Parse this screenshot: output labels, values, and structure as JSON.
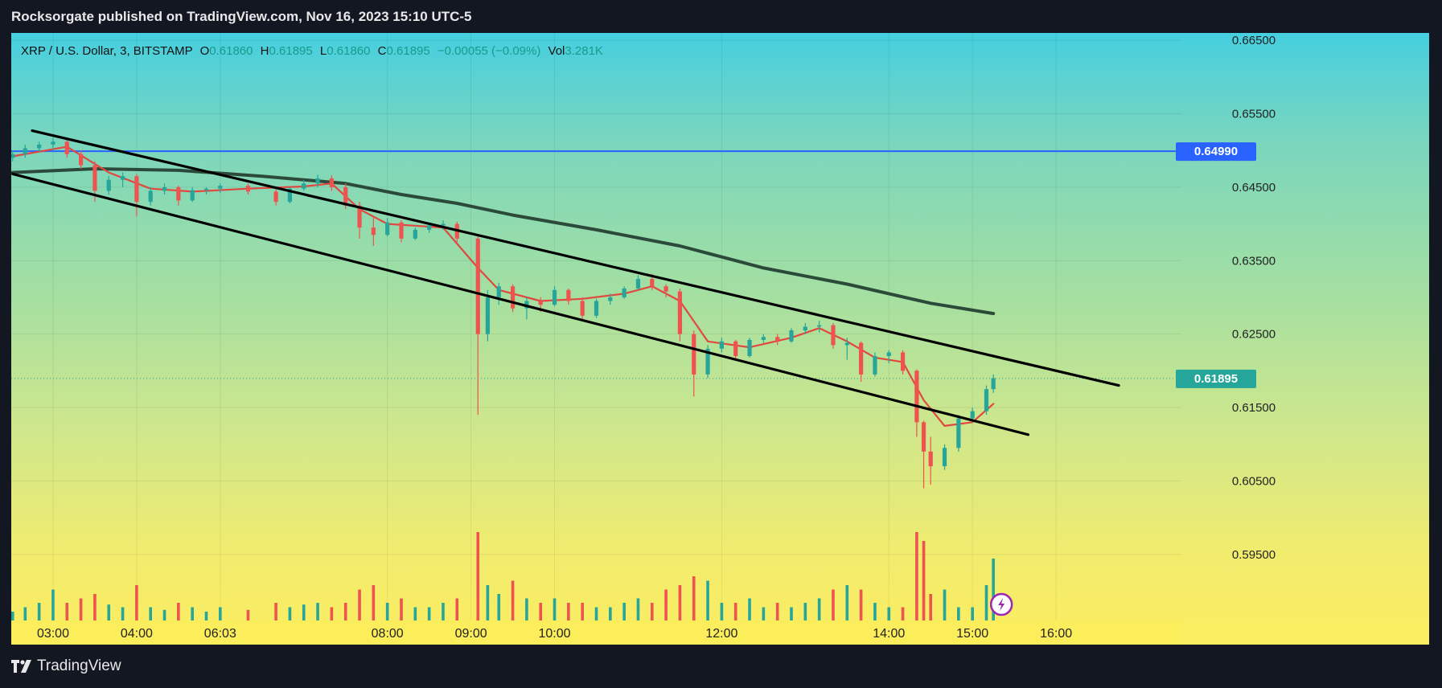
{
  "header": {
    "publish_line": "Rocksorgate published on TradingView.com, Nov 16, 2023 15:10 UTC-5"
  },
  "footer": {
    "brand": "TradingView"
  },
  "legend": {
    "symbol": "XRP / U.S. Dollar, 3, BITSTAMP",
    "o_label": "O",
    "o_value": "0.61860",
    "h_label": "H",
    "h_value": "0.61895",
    "l_label": "L",
    "l_value": "0.61860",
    "c_label": "C",
    "c_value": "0.61895",
    "change": "−0.00055 (−0.09%)",
    "vol_label": "Vol",
    "vol_value": "3.281K"
  },
  "colors": {
    "up": "#26a69a",
    "down": "#ef5350",
    "hline": "#2962ff",
    "last_price": "#26a69a",
    "ema_fast": "#e04840",
    "ema_mid": "#f0a030",
    "ma_slow": "#2c4a3a",
    "trendline": "#000000"
  },
  "chart_data": {
    "type": "candlestick",
    "symbol": "XRP / U.S. Dollar",
    "interval": "3",
    "exchange": "BITSTAMP",
    "y_range": [
      0.586,
      0.666
    ],
    "y_ticks": [
      "0.66500",
      "0.65500",
      "0.64500",
      "0.63500",
      "0.62500",
      "0.61500",
      "0.60500",
      "0.59500"
    ],
    "x_range": [
      "02:30",
      "16:30"
    ],
    "x_ticks": [
      {
        "label": "03:00",
        "t": "03:00"
      },
      {
        "label": "04:00",
        "t": "04:00"
      },
      {
        "label": "06:03",
        "t": "05:00"
      },
      {
        "label": "08:00",
        "t": "07:00"
      },
      {
        "label": "09:00",
        "t": "08:00"
      },
      {
        "label": "10:00",
        "t": "09:00"
      },
      {
        "label": "12:00",
        "t": "11:00"
      },
      {
        "label": "14:00",
        "t": "13:00"
      },
      {
        "label": "15:00",
        "t": "14:00"
      },
      {
        "label": "16:00",
        "t": "15:00"
      }
    ],
    "horizontal_line": {
      "price": 0.6499,
      "label": "0.64990"
    },
    "last_price": {
      "price": 0.61895,
      "label": "0.61895"
    },
    "candles": [
      {
        "t": "02:31",
        "o": 0.649,
        "h": 0.65,
        "l": 0.6485,
        "c": 0.6495,
        "v": 0.1
      },
      {
        "t": "02:40",
        "o": 0.6495,
        "h": 0.6508,
        "l": 0.649,
        "c": 0.6503,
        "v": 0.15
      },
      {
        "t": "02:50",
        "o": 0.6503,
        "h": 0.6512,
        "l": 0.6498,
        "c": 0.6508,
        "v": 0.2
      },
      {
        "t": "03:00",
        "o": 0.6508,
        "h": 0.6517,
        "l": 0.65,
        "c": 0.6512,
        "v": 0.35
      },
      {
        "t": "03:10",
        "o": 0.6512,
        "h": 0.6515,
        "l": 0.649,
        "c": 0.6495,
        "v": 0.2
      },
      {
        "t": "03:20",
        "o": 0.6495,
        "h": 0.65,
        "l": 0.6475,
        "c": 0.648,
        "v": 0.25
      },
      {
        "t": "03:30",
        "o": 0.648,
        "h": 0.6485,
        "l": 0.643,
        "c": 0.6445,
        "v": 0.3
      },
      {
        "t": "03:40",
        "o": 0.6445,
        "h": 0.6465,
        "l": 0.644,
        "c": 0.646,
        "v": 0.18
      },
      {
        "t": "03:50",
        "o": 0.646,
        "h": 0.647,
        "l": 0.645,
        "c": 0.6465,
        "v": 0.15
      },
      {
        "t": "04:00",
        "o": 0.6465,
        "h": 0.6468,
        "l": 0.641,
        "c": 0.643,
        "v": 0.4
      },
      {
        "t": "04:10",
        "o": 0.643,
        "h": 0.645,
        "l": 0.6425,
        "c": 0.6445,
        "v": 0.15
      },
      {
        "t": "04:20",
        "o": 0.6445,
        "h": 0.6455,
        "l": 0.644,
        "c": 0.645,
        "v": 0.12
      },
      {
        "t": "04:30",
        "o": 0.645,
        "h": 0.6452,
        "l": 0.6425,
        "c": 0.6432,
        "v": 0.2
      },
      {
        "t": "04:40",
        "o": 0.6432,
        "h": 0.645,
        "l": 0.643,
        "c": 0.6446,
        "v": 0.15
      },
      {
        "t": "04:50",
        "o": 0.6446,
        "h": 0.645,
        "l": 0.644,
        "c": 0.6448,
        "v": 0.1
      },
      {
        "t": "05:00",
        "o": 0.6448,
        "h": 0.6455,
        "l": 0.6442,
        "c": 0.6452,
        "v": 0.15
      },
      {
        "t": "05:20",
        "o": 0.6452,
        "h": 0.6455,
        "l": 0.644,
        "c": 0.6444,
        "v": 0.12
      },
      {
        "t": "05:40",
        "o": 0.6444,
        "h": 0.6448,
        "l": 0.6425,
        "c": 0.643,
        "v": 0.2
      },
      {
        "t": "05:50",
        "o": 0.643,
        "h": 0.645,
        "l": 0.6428,
        "c": 0.6448,
        "v": 0.15
      },
      {
        "t": "06:00",
        "o": 0.6448,
        "h": 0.646,
        "l": 0.6445,
        "c": 0.6455,
        "v": 0.18
      },
      {
        "t": "06:10",
        "o": 0.6455,
        "h": 0.6467,
        "l": 0.645,
        "c": 0.6462,
        "v": 0.2
      },
      {
        "t": "06:20",
        "o": 0.6462,
        "h": 0.6466,
        "l": 0.6445,
        "c": 0.645,
        "v": 0.15
      },
      {
        "t": "06:30",
        "o": 0.645,
        "h": 0.6455,
        "l": 0.642,
        "c": 0.6425,
        "v": 0.2
      },
      {
        "t": "06:40",
        "o": 0.6425,
        "h": 0.643,
        "l": 0.638,
        "c": 0.6395,
        "v": 0.35
      },
      {
        "t": "06:50",
        "o": 0.6395,
        "h": 0.641,
        "l": 0.637,
        "c": 0.6385,
        "v": 0.4
      },
      {
        "t": "07:00",
        "o": 0.6385,
        "h": 0.6408,
        "l": 0.6383,
        "c": 0.6402,
        "v": 0.2
      },
      {
        "t": "07:10",
        "o": 0.6402,
        "h": 0.6405,
        "l": 0.6375,
        "c": 0.638,
        "v": 0.25
      },
      {
        "t": "07:20",
        "o": 0.638,
        "h": 0.6395,
        "l": 0.6378,
        "c": 0.6392,
        "v": 0.15
      },
      {
        "t": "07:30",
        "o": 0.6392,
        "h": 0.6402,
        "l": 0.6388,
        "c": 0.6398,
        "v": 0.15
      },
      {
        "t": "07:40",
        "o": 0.6398,
        "h": 0.6405,
        "l": 0.6392,
        "c": 0.64,
        "v": 0.2
      },
      {
        "t": "07:50",
        "o": 0.64,
        "h": 0.6403,
        "l": 0.6375,
        "c": 0.638,
        "v": 0.25
      },
      {
        "t": "08:05",
        "o": 0.638,
        "h": 0.6385,
        "l": 0.614,
        "c": 0.625,
        "v": 1.0
      },
      {
        "t": "08:12",
        "o": 0.625,
        "h": 0.631,
        "l": 0.624,
        "c": 0.63,
        "v": 0.4
      },
      {
        "t": "08:20",
        "o": 0.63,
        "h": 0.632,
        "l": 0.629,
        "c": 0.6315,
        "v": 0.3
      },
      {
        "t": "08:30",
        "o": 0.6315,
        "h": 0.6318,
        "l": 0.628,
        "c": 0.6285,
        "v": 0.45
      },
      {
        "t": "08:40",
        "o": 0.6285,
        "h": 0.63,
        "l": 0.627,
        "c": 0.6295,
        "v": 0.25
      },
      {
        "t": "08:50",
        "o": 0.6295,
        "h": 0.63,
        "l": 0.628,
        "c": 0.629,
        "v": 0.2
      },
      {
        "t": "09:00",
        "o": 0.629,
        "h": 0.6315,
        "l": 0.6288,
        "c": 0.631,
        "v": 0.25
      },
      {
        "t": "09:10",
        "o": 0.631,
        "h": 0.6312,
        "l": 0.629,
        "c": 0.6295,
        "v": 0.2
      },
      {
        "t": "09:20",
        "o": 0.6295,
        "h": 0.63,
        "l": 0.627,
        "c": 0.6275,
        "v": 0.2
      },
      {
        "t": "09:30",
        "o": 0.6275,
        "h": 0.6298,
        "l": 0.6272,
        "c": 0.6295,
        "v": 0.15
      },
      {
        "t": "09:40",
        "o": 0.6295,
        "h": 0.6305,
        "l": 0.629,
        "c": 0.63,
        "v": 0.15
      },
      {
        "t": "09:50",
        "o": 0.63,
        "h": 0.6315,
        "l": 0.6298,
        "c": 0.6312,
        "v": 0.2
      },
      {
        "t": "10:00",
        "o": 0.6312,
        "h": 0.633,
        "l": 0.631,
        "c": 0.6325,
        "v": 0.25
      },
      {
        "t": "10:10",
        "o": 0.6325,
        "h": 0.6332,
        "l": 0.631,
        "c": 0.6315,
        "v": 0.2
      },
      {
        "t": "10:20",
        "o": 0.6315,
        "h": 0.6318,
        "l": 0.63,
        "c": 0.6308,
        "v": 0.35
      },
      {
        "t": "10:30",
        "o": 0.6308,
        "h": 0.6312,
        "l": 0.624,
        "c": 0.625,
        "v": 0.4
      },
      {
        "t": "10:40",
        "o": 0.625,
        "h": 0.6255,
        "l": 0.6165,
        "c": 0.6195,
        "v": 0.5
      },
      {
        "t": "10:50",
        "o": 0.6195,
        "h": 0.6235,
        "l": 0.619,
        "c": 0.623,
        "v": 0.45
      },
      {
        "t": "11:00",
        "o": 0.623,
        "h": 0.6245,
        "l": 0.6225,
        "c": 0.624,
        "v": 0.2
      },
      {
        "t": "11:10",
        "o": 0.624,
        "h": 0.6242,
        "l": 0.6215,
        "c": 0.622,
        "v": 0.2
      },
      {
        "t": "11:20",
        "o": 0.622,
        "h": 0.6245,
        "l": 0.6218,
        "c": 0.6242,
        "v": 0.25
      },
      {
        "t": "11:30",
        "o": 0.6242,
        "h": 0.625,
        "l": 0.6238,
        "c": 0.6246,
        "v": 0.15
      },
      {
        "t": "11:40",
        "o": 0.6246,
        "h": 0.625,
        "l": 0.6235,
        "c": 0.624,
        "v": 0.2
      },
      {
        "t": "11:50",
        "o": 0.624,
        "h": 0.6258,
        "l": 0.6238,
        "c": 0.6255,
        "v": 0.15
      },
      {
        "t": "12:00",
        "o": 0.6255,
        "h": 0.6265,
        "l": 0.625,
        "c": 0.626,
        "v": 0.2
      },
      {
        "t": "12:10",
        "o": 0.626,
        "h": 0.6268,
        "l": 0.6252,
        "c": 0.6262,
        "v": 0.25
      },
      {
        "t": "12:20",
        "o": 0.6262,
        "h": 0.6265,
        "l": 0.623,
        "c": 0.6235,
        "v": 0.35
      },
      {
        "t": "12:30",
        "o": 0.6235,
        "h": 0.6245,
        "l": 0.6215,
        "c": 0.6238,
        "v": 0.4
      },
      {
        "t": "12:40",
        "o": 0.6238,
        "h": 0.624,
        "l": 0.6185,
        "c": 0.6195,
        "v": 0.35
      },
      {
        "t": "12:50",
        "o": 0.6195,
        "h": 0.6225,
        "l": 0.6192,
        "c": 0.622,
        "v": 0.2
      },
      {
        "t": "13:00",
        "o": 0.622,
        "h": 0.6228,
        "l": 0.621,
        "c": 0.6225,
        "v": 0.15
      },
      {
        "t": "13:10",
        "o": 0.6225,
        "h": 0.6228,
        "l": 0.6195,
        "c": 0.62,
        "v": 0.15
      },
      {
        "t": "13:20",
        "o": 0.62,
        "h": 0.6202,
        "l": 0.611,
        "c": 0.613,
        "v": 1.0
      },
      {
        "t": "13:25",
        "o": 0.613,
        "h": 0.6132,
        "l": 0.604,
        "c": 0.609,
        "v": 0.9
      },
      {
        "t": "13:30",
        "o": 0.609,
        "h": 0.611,
        "l": 0.6045,
        "c": 0.607,
        "v": 0.3
      },
      {
        "t": "13:40",
        "o": 0.607,
        "h": 0.61,
        "l": 0.6065,
        "c": 0.6095,
        "v": 0.35
      },
      {
        "t": "13:50",
        "o": 0.6095,
        "h": 0.614,
        "l": 0.609,
        "c": 0.6135,
        "v": 0.15
      },
      {
        "t": "14:00",
        "o": 0.6135,
        "h": 0.615,
        "l": 0.613,
        "c": 0.6145,
        "v": 0.15
      },
      {
        "t": "14:10",
        "o": 0.6145,
        "h": 0.618,
        "l": 0.614,
        "c": 0.6175,
        "v": 0.4
      },
      {
        "t": "14:15",
        "o": 0.6175,
        "h": 0.6195,
        "l": 0.617,
        "c": 0.619,
        "v": 0.7
      }
    ],
    "ma_fast": [
      {
        "t": "02:31",
        "p": 0.6492
      },
      {
        "t": "03:10",
        "p": 0.6505
      },
      {
        "t": "03:40",
        "p": 0.647
      },
      {
        "t": "04:10",
        "p": 0.6448
      },
      {
        "t": "04:40",
        "p": 0.6444
      },
      {
        "t": "05:20",
        "p": 0.6448
      },
      {
        "t": "06:00",
        "p": 0.6451
      },
      {
        "t": "06:20",
        "p": 0.6455
      },
      {
        "t": "06:40",
        "p": 0.642
      },
      {
        "t": "07:00",
        "p": 0.64
      },
      {
        "t": "07:40",
        "p": 0.6395
      },
      {
        "t": "08:05",
        "p": 0.634
      },
      {
        "t": "08:20",
        "p": 0.631
      },
      {
        "t": "08:50",
        "p": 0.6295
      },
      {
        "t": "09:20",
        "p": 0.6298
      },
      {
        "t": "09:50",
        "p": 0.6305
      },
      {
        "t": "10:10",
        "p": 0.6315
      },
      {
        "t": "10:30",
        "p": 0.6295
      },
      {
        "t": "10:50",
        "p": 0.624
      },
      {
        "t": "11:20",
        "p": 0.6232
      },
      {
        "t": "11:50",
        "p": 0.6245
      },
      {
        "t": "12:10",
        "p": 0.6258
      },
      {
        "t": "12:30",
        "p": 0.624
      },
      {
        "t": "12:50",
        "p": 0.6218
      },
      {
        "t": "13:10",
        "p": 0.6212
      },
      {
        "t": "13:25",
        "p": 0.616
      },
      {
        "t": "13:40",
        "p": 0.6125
      },
      {
        "t": "14:00",
        "p": 0.613
      },
      {
        "t": "14:15",
        "p": 0.6155
      }
    ],
    "ma_mid": [
      {
        "t": "02:31",
        "p": 0.6495
      },
      {
        "t": "03:10",
        "p": 0.6495
      },
      {
        "t": "03:40",
        "p": 0.648
      },
      {
        "t": "04:10",
        "p": 0.6465
      },
      {
        "t": "05:00",
        "p": 0.6452
      },
      {
        "t": "06:00",
        "p": 0.6455
      },
      {
        "t": "06:30",
        "p": 0.644
      },
      {
        "t": "07:00",
        "p": 0.642
      },
      {
        "t": "07:40",
        "p": 0.641
      },
      {
        "t": "08:10",
        "p": 0.6375
      },
      {
        "t": "08:40",
        "p": 0.6335
      },
      {
        "t": "09:20",
        "p": 0.6318
      },
      {
        "t": "10:00",
        "p": 0.6318
      },
      {
        "t": "10:30",
        "p": 0.6302
      },
      {
        "t": "11:00",
        "p": 0.6268
      },
      {
        "t": "11:40",
        "p": 0.6252
      },
      {
        "t": "12:20",
        "p": 0.6252
      },
      {
        "t": "12:50",
        "p": 0.6235
      },
      {
        "t": "13:20",
        "p": 0.6215
      },
      {
        "t": "13:40",
        "p": 0.619
      },
      {
        "t": "14:00",
        "p": 0.6182
      },
      {
        "t": "14:15",
        "p": 0.6182
      }
    ],
    "ma_slow": [
      {
        "t": "02:31",
        "p": 0.647
      },
      {
        "t": "03:30",
        "p": 0.6475
      },
      {
        "t": "04:30",
        "p": 0.6473
      },
      {
        "t": "05:30",
        "p": 0.6465
      },
      {
        "t": "06:30",
        "p": 0.6455
      },
      {
        "t": "07:10",
        "p": 0.644
      },
      {
        "t": "07:50",
        "p": 0.6428
      },
      {
        "t": "08:30",
        "p": 0.6412
      },
      {
        "t": "09:30",
        "p": 0.6392
      },
      {
        "t": "10:30",
        "p": 0.637
      },
      {
        "t": "11:30",
        "p": 0.634
      },
      {
        "t": "12:30",
        "p": 0.6318
      },
      {
        "t": "13:30",
        "p": 0.6292
      },
      {
        "t": "14:15",
        "p": 0.6278
      }
    ],
    "trendlines": [
      {
        "name": "upper",
        "from": {
          "t": "02:45",
          "p": 0.6527
        },
        "to": {
          "t": "15:45",
          "p": 0.618
        }
      },
      {
        "name": "lower",
        "from": {
          "t": "02:31",
          "p": 0.6468
        },
        "to": {
          "t": "14:40",
          "p": 0.6113
        }
      }
    ]
  }
}
